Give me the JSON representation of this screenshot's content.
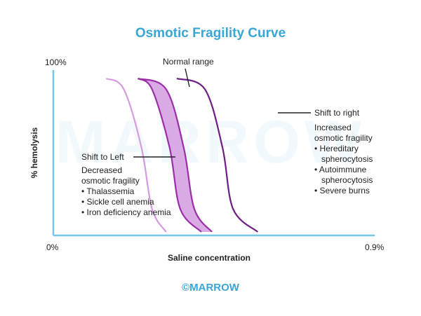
{
  "chart_data": {
    "type": "line",
    "title": "Osmotic Fragility Curve",
    "xlabel": "Saline concentration",
    "ylabel": "% hemolysis",
    "x_ticks": [
      "0%",
      "0.9%"
    ],
    "y_ticks": [
      "100%"
    ],
    "xlim": [
      0,
      0.9
    ],
    "ylim": [
      0,
      100
    ],
    "grid": false,
    "colors": {
      "left": "#d49be0",
      "normal": "#9a2fa8",
      "normal_fill": "#d49be0",
      "right": "#6e1e84"
    },
    "series": [
      {
        "role": "left",
        "x": [
          0.15,
          0.2,
          0.25,
          0.28,
          0.32
        ],
        "y": [
          100,
          93,
          55,
          15,
          0
        ]
      },
      {
        "role": "normal_lower",
        "x": [
          0.24,
          0.32,
          0.37,
          0.4,
          0.45
        ],
        "y": [
          100,
          93,
          55,
          15,
          0
        ]
      },
      {
        "role": "normal_upper",
        "x": [
          0.24,
          0.28,
          0.33,
          0.36,
          0.42
        ],
        "y": [
          100,
          93,
          55,
          15,
          0
        ]
      },
      {
        "role": "right",
        "x": [
          0.35,
          0.43,
          0.48,
          0.51,
          0.58
        ],
        "y": [
          100,
          93,
          55,
          15,
          0
        ]
      }
    ],
    "annotations": {
      "normal": "Normal range",
      "left_title": "Shift to Left",
      "left_lines": [
        "Decreased",
        "osmotic fragility",
        "• Thalassemia",
        "• Sickle cell anemia",
        "• Iron deficiency anemia"
      ],
      "right_title": "Shift to right",
      "right_lines": [
        "Increased",
        "osmotic fragility",
        "• Hereditary",
        "spherocytosis",
        "• Autoimmune",
        "spherocytosis",
        "• Severe burns"
      ]
    }
  },
  "watermark": "MARROW",
  "brand": "©MARROW"
}
